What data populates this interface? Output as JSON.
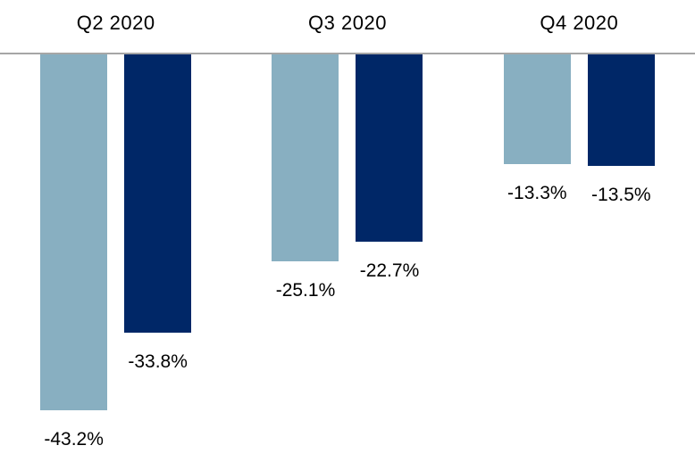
{
  "chart_data": {
    "type": "bar",
    "orientation": "vertical",
    "title": "",
    "categories": [
      "Q2 2020",
      "Q3 2020",
      "Q4 2020"
    ],
    "series": [
      {
        "name": "series-light-blue",
        "color": "#88AFC1",
        "values": [
          -43.2,
          -25.1,
          -13.3
        ],
        "labels": [
          "-43.2%",
          "-25.1%",
          "-13.3%"
        ]
      },
      {
        "name": "series-dark-navy",
        "color": "#002767",
        "values": [
          -33.8,
          -22.7,
          -13.5
        ],
        "labels": [
          "-33.8%",
          "-22.7%",
          "-13.5%"
        ]
      }
    ],
    "baseline": {
      "value": 0,
      "color": "#A6A6A6"
    },
    "value_axis": {
      "visible": false,
      "range_hint": [
        -45,
        0
      ]
    },
    "legend": {
      "visible": false
    },
    "grid": false,
    "data_labels_position": "below-bar-end",
    "text_color": "#000000",
    "background_color": "#FFFFFF"
  }
}
